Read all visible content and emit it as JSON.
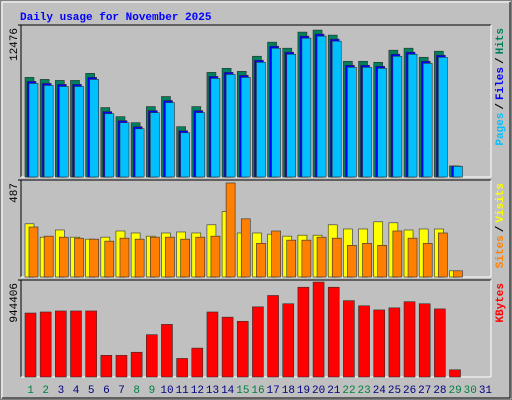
{
  "chart_data": [
    {
      "type": "bar",
      "title": "Daily usage for November 2025",
      "title_color": "#0000FF",
      "ylim": [
        0,
        12476
      ],
      "yticks": [
        12476
      ],
      "legend_separator": "/",
      "series": [
        {
          "name": "Pages",
          "color": "#00C0FF",
          "values": [
            7678,
            7513,
            7430,
            7430,
            8008,
            5200,
            4456,
            3960,
            5282,
            6108,
            3630,
            5282,
            8090,
            8421,
            8173,
            9412,
            10568,
            10073,
            11394,
            11560,
            11147,
            8999,
            8999,
            8916,
            9908,
            10073,
            9329,
            9825,
            880,
            0,
            0
          ]
        },
        {
          "name": "Files",
          "color": "#0000FF",
          "values": [
            7848,
            7683,
            7600,
            7600,
            8178,
            5370,
            4626,
            4130,
            5452,
            6278,
            3800,
            5452,
            8260,
            8591,
            8343,
            9582,
            10738,
            10243,
            11564,
            11730,
            11317,
            9169,
            9169,
            9086,
            10078,
            10243,
            9499,
            9995,
            900,
            0,
            0
          ]
        },
        {
          "name": "Hits",
          "color": "#00805C",
          "values": [
            8178,
            8013,
            7930,
            7930,
            8508,
            5700,
            4956,
            4460,
            5782,
            6608,
            4130,
            5782,
            8590,
            8921,
            8673,
            9912,
            11068,
            10573,
            11894,
            12060,
            11647,
            9499,
            9499,
            9416,
            10408,
            10573,
            9829,
            10325,
            909,
            0,
            0
          ]
        }
      ]
    },
    {
      "type": "bar",
      "ylim": [
        0,
        487
      ],
      "yticks": [
        487
      ],
      "legend_separator": "/",
      "series": [
        {
          "name": "Sites",
          "color": "#FF8000",
          "values": [
            251,
            205,
            200,
            195,
            190,
            180,
            195,
            190,
            200,
            200,
            190,
            200,
            205,
            472,
            292,
            169,
            231,
            185,
            185,
            200,
            195,
            159,
            169,
            159,
            231,
            195,
            169,
            221,
            31,
            0,
            0
          ]
        },
        {
          "name": "Visits",
          "color": "#FFFF00",
          "values": [
            267,
            200,
            236,
            200,
            190,
            200,
            231,
            221,
            205,
            221,
            226,
            221,
            262,
            328,
            221,
            221,
            215,
            205,
            210,
            210,
            262,
            241,
            241,
            277,
            272,
            236,
            241,
            241,
            31,
            0,
            0
          ]
        }
      ]
    },
    {
      "type": "bar",
      "ylim": [
        0,
        944406
      ],
      "yticks": [
        944406
      ],
      "categories": [
        "1",
        "2",
        "3",
        "4",
        "5",
        "6",
        "7",
        "8",
        "9",
        "10",
        "11",
        "12",
        "13",
        "14",
        "15",
        "16",
        "17",
        "18",
        "19",
        "20",
        "21",
        "22",
        "23",
        "24",
        "25",
        "26",
        "27",
        "28",
        "29",
        "30",
        "31"
      ],
      "category_colors": [
        "#008040",
        "#008040",
        "#000080",
        "#000080",
        "#000080",
        "#000080",
        "#000080",
        "#008040",
        "#008040",
        "#000080",
        "#000080",
        "#000080",
        "#000080",
        "#000080",
        "#008040",
        "#008040",
        "#000080",
        "#000080",
        "#000080",
        "#000080",
        "#000080",
        "#008040",
        "#008040",
        "#000080",
        "#000080",
        "#000080",
        "#000080",
        "#000080",
        "#008040",
        "#008040",
        "#000080"
      ],
      "series": [
        {
          "name": "KBytes",
          "color": "#FF0000",
          "values": [
            622914,
            632961,
            643008,
            643008,
            643008,
            210987,
            210987,
            241128,
            411927,
            512397,
            180846,
            281316,
            632961,
            582726,
            542538,
            683196,
            793713,
            713337,
            874089,
            924324,
            874089,
            743478,
            693243,
            653055,
            673149,
            733431,
            713337,
            663102,
            70329,
            0,
            0
          ]
        }
      ]
    }
  ]
}
